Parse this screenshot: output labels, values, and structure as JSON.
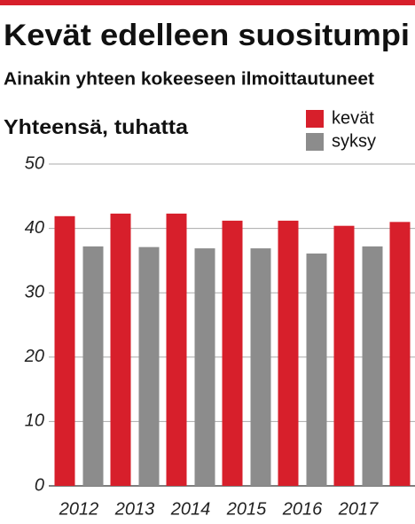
{
  "chart_data": {
    "type": "bar",
    "title": "Kevät edelleen suositumpi",
    "subtitle": "Ainakin yhteen kokeeseen ilmoittautuneet",
    "y_label": "Yhteensä, tuhatta",
    "categories": [
      "2012",
      "2013",
      "2014",
      "2015",
      "2016",
      "2017",
      null
    ],
    "series": [
      {
        "name": "kevät",
        "color": "#d71f2b",
        "values": [
          41.9,
          42.3,
          42.3,
          41.2,
          41.2,
          40.4,
          41.0
        ]
      },
      {
        "name": "syksy",
        "color": "#8c8c8c",
        "values": [
          37.2,
          37.1,
          36.9,
          36.9,
          36.1,
          37.2,
          null
        ]
      }
    ],
    "ylim": [
      0,
      50
    ],
    "yticks": [
      0,
      10,
      20,
      30,
      40,
      50
    ],
    "grid": true,
    "legend": "top-right"
  }
}
